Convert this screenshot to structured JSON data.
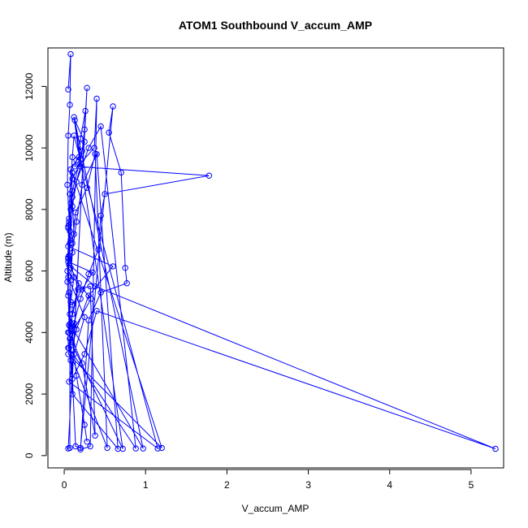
{
  "chart_data": {
    "type": "line",
    "title": "ATOM1 Southbound V_accum_AMP",
    "xlabel": "V_accum_AMP",
    "ylabel": "Altitude (m)",
    "xlim": [
      -0.2,
      5.4
    ],
    "ylim": [
      -400,
      13250
    ],
    "xticks": [
      0,
      1,
      2,
      3,
      4,
      5
    ],
    "yticks": [
      0,
      2000,
      4000,
      6000,
      8000,
      10000,
      12000
    ],
    "colors": {
      "series": "#0000ff",
      "axis": "#000000"
    },
    "marker": "open-circle",
    "grid": false,
    "series": [
      {
        "name": "",
        "points": [
          [
            0.05,
            11900
          ],
          [
            0.08,
            13050
          ],
          [
            0.07,
            11400
          ],
          [
            0.05,
            10400
          ],
          [
            0.04,
            8800
          ],
          [
            0.06,
            7700
          ],
          [
            0.05,
            7450
          ],
          [
            0.07,
            6900
          ],
          [
            0.05,
            6450
          ],
          [
            0.04,
            5650
          ],
          [
            0.05,
            5200
          ],
          [
            0.06,
            4250
          ],
          [
            0.07,
            3800
          ],
          [
            0.07,
            250
          ],
          [
            0.05,
            230
          ],
          [
            0.28,
            11950
          ],
          [
            0.25,
            10600
          ],
          [
            0.22,
            9900
          ],
          [
            0.15,
            9600
          ],
          [
            0.13,
            9400
          ],
          [
            1.78,
            9100
          ],
          [
            0.5,
            8500
          ],
          [
            0.45,
            7800
          ],
          [
            0.42,
            6700
          ],
          [
            0.3,
            5900
          ],
          [
            0.2,
            5100
          ],
          [
            0.12,
            4300
          ],
          [
            0.08,
            3700
          ],
          [
            0.14,
            300
          ],
          [
            0.2,
            250
          ],
          [
            0.6,
            11350
          ],
          [
            0.55,
            10500
          ],
          [
            0.7,
            9200
          ],
          [
            0.75,
            6100
          ],
          [
            0.77,
            5600
          ],
          [
            0.45,
            5300
          ],
          [
            0.3,
            4400
          ],
          [
            0.2,
            200
          ],
          [
            0.32,
            300
          ],
          [
            0.4,
            11600
          ],
          [
            0.37,
            10000
          ],
          [
            0.2,
            9500
          ],
          [
            0.1,
            9000
          ],
          [
            0.08,
            8200
          ],
          [
            0.06,
            6200
          ],
          [
            0.38,
            5500
          ],
          [
            5.3,
            220
          ],
          [
            0.4,
            4700
          ],
          [
            0.25,
            3300
          ],
          [
            0.1,
            2500
          ],
          [
            0.26,
            11200
          ],
          [
            0.2,
            10300
          ],
          [
            0.18,
            9700
          ],
          [
            0.08,
            9300
          ],
          [
            0.12,
            7200
          ],
          [
            0.05,
            6800
          ],
          [
            0.6,
            6150
          ],
          [
            0.3,
            5200
          ],
          [
            0.15,
            4100
          ],
          [
            0.1,
            3600
          ],
          [
            0.72,
            220
          ],
          [
            0.13,
            10900
          ],
          [
            0.25,
            10200
          ],
          [
            0.1,
            8600
          ],
          [
            0.08,
            7000
          ],
          [
            0.05,
            6300
          ],
          [
            0.35,
            5950
          ],
          [
            0.22,
            5400
          ],
          [
            0.1,
            4900
          ],
          [
            0.09,
            4200
          ],
          [
            0.97,
            230
          ],
          [
            0.12,
            11000
          ],
          [
            0.2,
            9400
          ],
          [
            0.1,
            8400
          ],
          [
            0.06,
            7600
          ],
          [
            0.04,
            6000
          ],
          [
            0.33,
            5100
          ],
          [
            0.12,
            4100
          ],
          [
            0.05,
            3300
          ],
          [
            1.2,
            250
          ],
          [
            0.1,
            9200
          ],
          [
            0.08,
            8000
          ],
          [
            0.05,
            7400
          ],
          [
            0.06,
            6500
          ],
          [
            0.12,
            5800
          ],
          [
            0.08,
            5000
          ],
          [
            0.05,
            4000
          ],
          [
            0.05,
            3500
          ],
          [
            0.53,
            250
          ],
          [
            0.38,
            9800
          ],
          [
            0.28,
            8700
          ],
          [
            0.14,
            7900
          ],
          [
            0.1,
            6900
          ],
          [
            0.08,
            6100
          ],
          [
            0.18,
            5600
          ],
          [
            0.1,
            4600
          ],
          [
            0.06,
            4000
          ],
          [
            0.22,
            3000
          ],
          [
            0.38,
            650
          ],
          [
            0.32,
            5500
          ],
          [
            0.17,
            5400
          ],
          [
            0.08,
            4300
          ],
          [
            0.06,
            3500
          ],
          [
            0.88,
            230
          ],
          [
            0.45,
            10700
          ],
          [
            0.3,
            10000
          ],
          [
            0.15,
            8900
          ],
          [
            0.1,
            8100
          ],
          [
            0.07,
            7300
          ],
          [
            0.05,
            5800
          ],
          [
            0.25,
            4500
          ],
          [
            0.12,
            3300
          ],
          [
            0.06,
            2400
          ],
          [
            1.15,
            230
          ],
          [
            0.12,
            10400
          ],
          [
            0.1,
            9700
          ],
          [
            0.07,
            8500
          ],
          [
            0.06,
            7500
          ],
          [
            0.05,
            6400
          ],
          [
            0.06,
            5300
          ],
          [
            0.07,
            4200
          ],
          [
            0.08,
            3100
          ],
          [
            0.1,
            2000
          ],
          [
            0.66,
            220
          ],
          [
            0.4,
            9800
          ],
          [
            0.22,
            8800
          ],
          [
            0.15,
            7600
          ],
          [
            0.1,
            6600
          ],
          [
            0.08,
            5700
          ],
          [
            0.07,
            4600
          ],
          [
            0.1,
            3900
          ],
          [
            0.15,
            2600
          ],
          [
            0.25,
            1000
          ],
          [
            0.28,
            450
          ]
        ]
      }
    ]
  }
}
